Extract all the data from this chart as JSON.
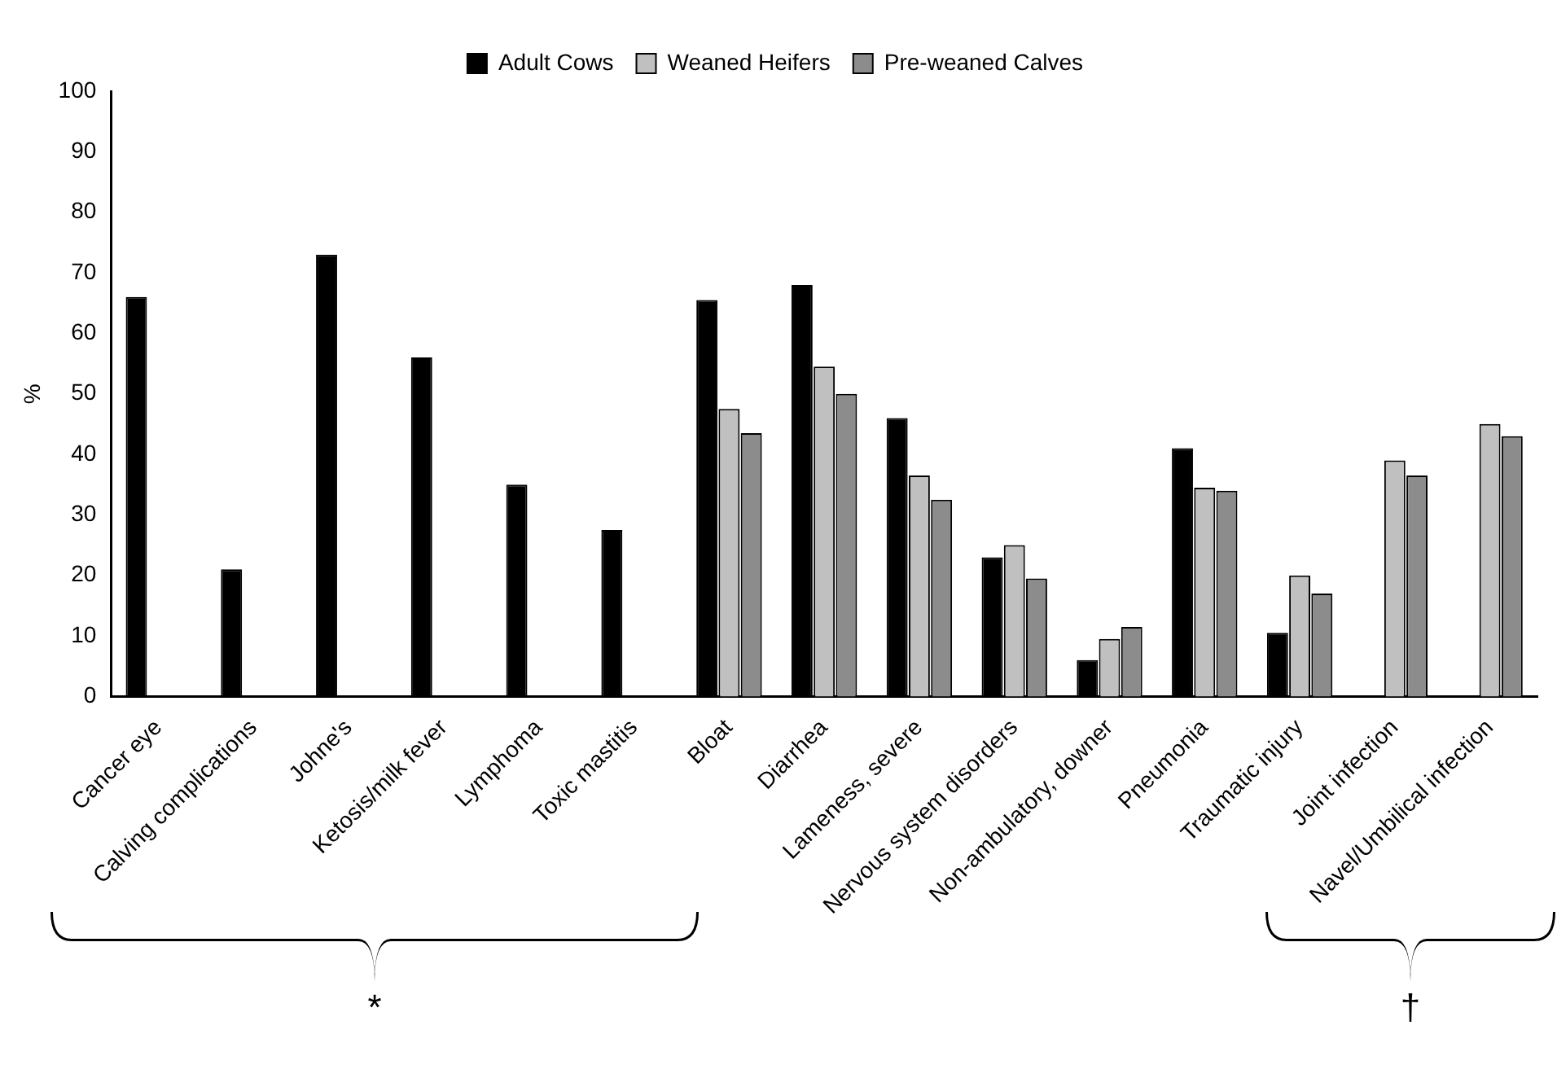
{
  "chart_data": {
    "type": "bar",
    "ylabel": "%",
    "categories": [
      "Cancer eye",
      "Calving complications",
      "Johne's",
      "Ketosis/milk fever",
      "Lymphoma",
      "Toxic mastitis",
      "Bloat",
      "Diarrhea",
      "Lameness, severe",
      "Nervous system disorders",
      "Non-ambulatory, downer",
      "Pneumonia",
      "Traumatic injury",
      "Joint infection",
      "Navel/Umbilical infection"
    ],
    "series": [
      {
        "name": "Adult Cows",
        "color": "#000000",
        "values": [
          66,
          21,
          73,
          56,
          35,
          27.5,
          65.5,
          68,
          46,
          23,
          6,
          41,
          10.5,
          null,
          null
        ]
      },
      {
        "name": "Weaned Heifers",
        "color": "#c0c0c0",
        "values": [
          null,
          null,
          null,
          null,
          null,
          null,
          47.5,
          54.5,
          36.5,
          25,
          9.5,
          34.5,
          20,
          39,
          45
        ]
      },
      {
        "name": "Pre-weaned Calves",
        "color": "#8c8c8c",
        "values": [
          null,
          null,
          null,
          null,
          null,
          null,
          43.5,
          50,
          32.5,
          19.5,
          11.5,
          34,
          17,
          36.5,
          43
        ]
      }
    ],
    "ylim": [
      0,
      100
    ],
    "yticks": [
      0,
      10,
      20,
      30,
      40,
      50,
      60,
      70,
      80,
      90,
      100
    ],
    "grid": false,
    "legend": "top",
    "annotations": [
      "*",
      "†"
    ]
  }
}
